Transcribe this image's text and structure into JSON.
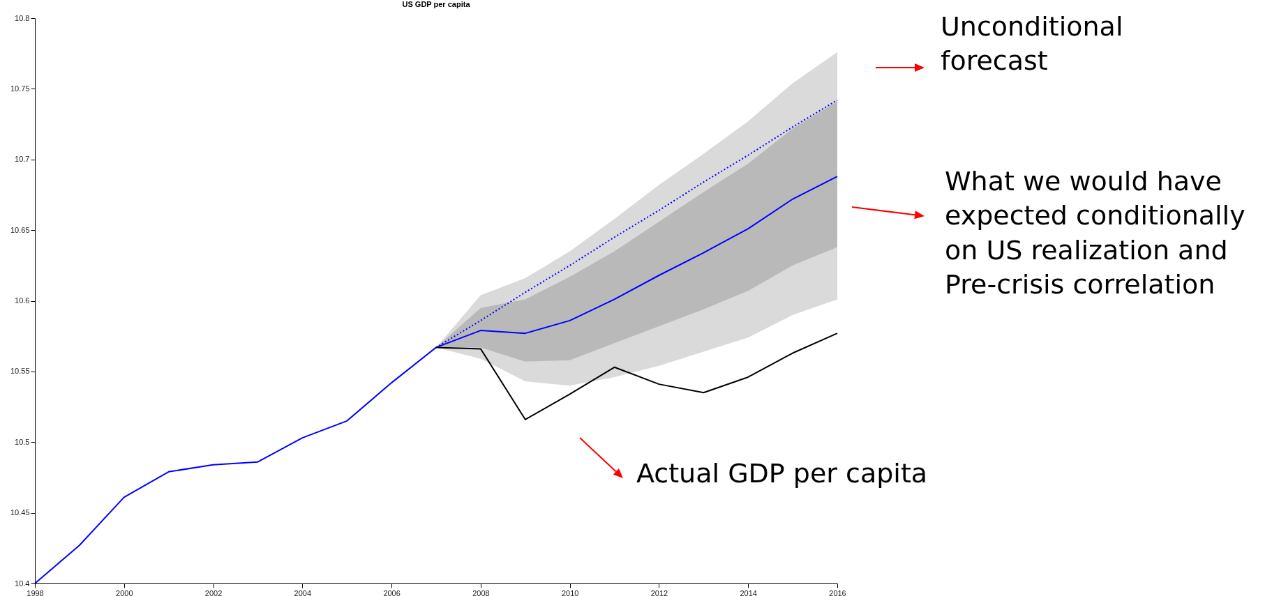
{
  "chart_data": {
    "type": "line",
    "title": "US GDP per capita",
    "xlim": [
      1998,
      2016
    ],
    "xticks": [
      1998,
      2000,
      2002,
      2004,
      2006,
      2008,
      2010,
      2012,
      2014,
      2016
    ],
    "ylim": [
      10.4,
      10.8
    ],
    "yticks": [
      10.4,
      10.45,
      10.5,
      10.55,
      10.6,
      10.65,
      10.7,
      10.75,
      10.8
    ],
    "grid": false,
    "annotations": [
      "Unconditional forecast",
      "What we would have expected conditionally on US realization and Pre-crisis correlation",
      "Actual GDP per capita"
    ],
    "series": [
      {
        "color": "#0000ff",
        "line_style": "solid",
        "x": [
          1998,
          1999,
          2000,
          2001,
          2002,
          2003,
          2004,
          2005,
          2006,
          2007,
          2008,
          2009,
          2010,
          2011,
          2012,
          2013,
          2014,
          2015,
          2016
        ],
        "values": [
          10.4,
          10.427,
          10.461,
          10.479,
          10.484,
          10.486,
          10.503,
          10.515,
          10.542,
          10.567,
          10.579,
          10.577,
          10.586,
          10.601,
          10.618,
          10.634,
          10.651,
          10.672,
          10.688
        ],
        "lower": [
          null,
          null,
          null,
          null,
          null,
          null,
          null,
          null,
          null,
          10.567,
          10.567,
          10.557,
          10.558,
          10.57,
          10.582,
          10.594,
          10.607,
          10.625,
          10.638
        ],
        "upper": [
          null,
          null,
          null,
          null,
          null,
          null,
          null,
          null,
          null,
          10.567,
          10.595,
          10.601,
          10.617,
          10.635,
          10.656,
          10.677,
          10.697,
          10.722,
          10.741
        ]
      },
      {
        "color": "#0000ff",
        "line_style": "dotted",
        "x": [
          2007,
          2008,
          2009,
          2010,
          2011,
          2012,
          2013,
          2014,
          2015,
          2016
        ],
        "values": [
          10.567,
          10.586,
          10.606,
          10.625,
          10.645,
          10.664,
          10.684,
          10.703,
          10.723,
          10.742
        ],
        "lower": [
          10.567,
          10.559,
          10.543,
          10.54,
          10.546,
          10.554,
          10.564,
          10.574,
          10.59,
          10.601
        ],
        "upper": [
          10.567,
          10.604,
          10.616,
          10.635,
          10.658,
          10.682,
          10.704,
          10.727,
          10.754,
          10.776
        ]
      },
      {
        "color": "#000000",
        "line_style": "solid",
        "x": [
          2007,
          2008,
          2009,
          2010,
          2011,
          2012,
          2013,
          2014,
          2015,
          2016
        ],
        "values": [
          10.567,
          10.566,
          10.516,
          10.534,
          10.553,
          10.541,
          10.535,
          10.546,
          10.563,
          10.577
        ]
      }
    ]
  }
}
